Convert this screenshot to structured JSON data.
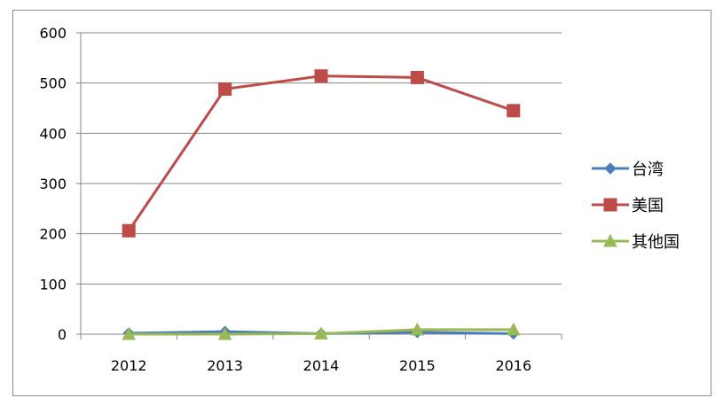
{
  "chart_data": {
    "type": "line",
    "title": "",
    "xlabel": "",
    "ylabel": "",
    "categories": [
      "2012",
      "2013",
      "2014",
      "2015",
      "2016"
    ],
    "ylim": [
      0,
      600
    ],
    "yticks": [
      0,
      100,
      200,
      300,
      400,
      500,
      600
    ],
    "grid": true,
    "legend_position": "right",
    "series": [
      {
        "name": "台湾",
        "values": [
          2,
          5,
          1,
          4,
          1
        ],
        "color": "#4a7ebb",
        "marker": "diamond"
      },
      {
        "name": "美国",
        "values": [
          206,
          488,
          514,
          511,
          445
        ],
        "color": "#be4b48",
        "marker": "square"
      },
      {
        "name": "其他国",
        "values": [
          0,
          0,
          1,
          9,
          9
        ],
        "color": "#98b954",
        "marker": "triangle"
      }
    ]
  }
}
